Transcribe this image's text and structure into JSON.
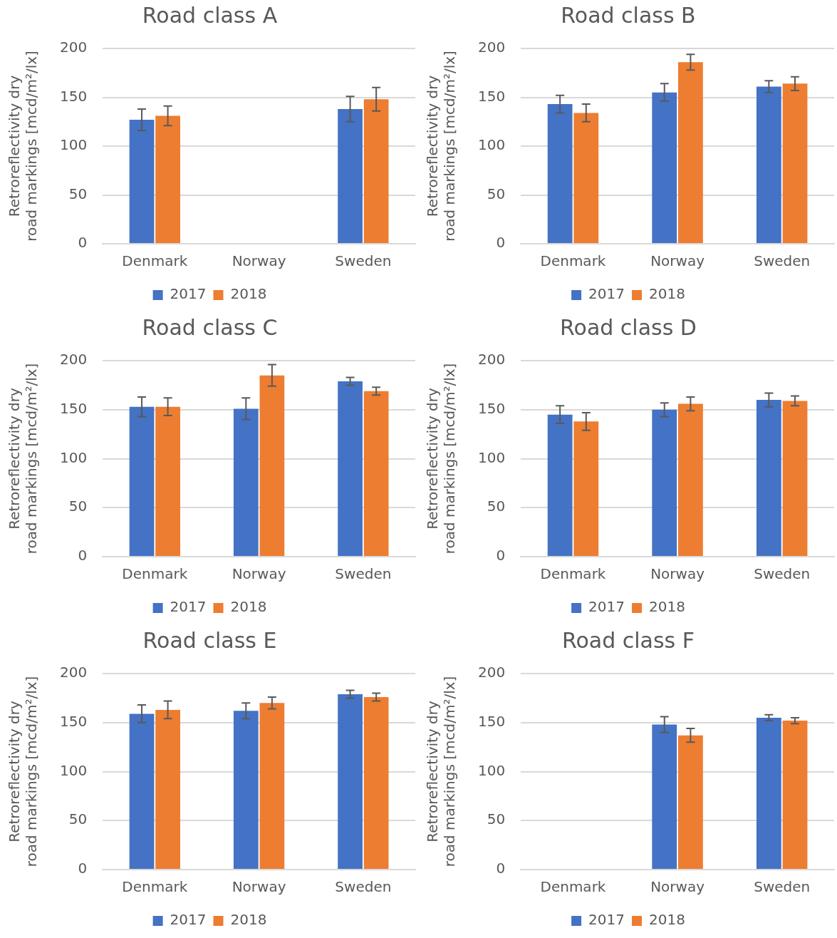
{
  "chart_data": [
    {
      "type": "bar",
      "title": "Road class A",
      "ylabel": "Retroreflectivity dry road markings [mcd/m²/lx]",
      "categories": [
        "Denmark",
        "Norway",
        "Sweden"
      ],
      "ylim": [
        0,
        200
      ],
      "yticks": [
        0,
        50,
        100,
        150,
        200
      ],
      "grid": "y",
      "legend": "bottom",
      "series": [
        {
          "name": "2017",
          "color": "#4472c4",
          "values": [
            127,
            null,
            138
          ],
          "errors": [
            11,
            null,
            13
          ]
        },
        {
          "name": "2018",
          "color": "#ed7d31",
          "values": [
            131,
            null,
            148
          ],
          "errors": [
            10,
            null,
            12
          ]
        }
      ]
    },
    {
      "type": "bar",
      "title": "Road class B",
      "ylabel": "Retroreflectivity dry road markings [mcd/m²/lx]",
      "categories": [
        "Denmark",
        "Norway",
        "Sweden"
      ],
      "ylim": [
        0,
        200
      ],
      "yticks": [
        0,
        50,
        100,
        150,
        200
      ],
      "grid": "y",
      "legend": "bottom",
      "series": [
        {
          "name": "2017",
          "color": "#4472c4",
          "values": [
            143,
            155,
            161
          ],
          "errors": [
            9,
            9,
            6
          ]
        },
        {
          "name": "2018",
          "color": "#ed7d31",
          "values": [
            134,
            186,
            164
          ],
          "errors": [
            9,
            8,
            7
          ]
        }
      ]
    },
    {
      "type": "bar",
      "title": "Road class C",
      "ylabel": "Retroreflectivity dry road markings [mcd/m²/lx]",
      "categories": [
        "Denmark",
        "Norway",
        "Sweden"
      ],
      "ylim": [
        0,
        200
      ],
      "yticks": [
        0,
        50,
        100,
        150,
        200
      ],
      "grid": "y",
      "legend": "bottom",
      "series": [
        {
          "name": "2017",
          "color": "#4472c4",
          "values": [
            153,
            151,
            179
          ],
          "errors": [
            10,
            11,
            4
          ]
        },
        {
          "name": "2018",
          "color": "#ed7d31",
          "values": [
            153,
            185,
            169
          ],
          "errors": [
            9,
            11,
            4
          ]
        }
      ]
    },
    {
      "type": "bar",
      "title": "Road class D",
      "ylabel": "Retroreflectivity dry road markings [mcd/m²/lx]",
      "categories": [
        "Denmark",
        "Norway",
        "Sweden"
      ],
      "ylim": [
        0,
        200
      ],
      "yticks": [
        0,
        50,
        100,
        150,
        200
      ],
      "grid": "y",
      "legend": "bottom",
      "series": [
        {
          "name": "2017",
          "color": "#4472c4",
          "values": [
            145,
            150,
            160
          ],
          "errors": [
            9,
            7,
            7
          ]
        },
        {
          "name": "2018",
          "color": "#ed7d31",
          "values": [
            138,
            156,
            159
          ],
          "errors": [
            9,
            7,
            5
          ]
        }
      ]
    },
    {
      "type": "bar",
      "title": "Road class E",
      "ylabel": "Retroreflectivity dry road markings [mcd/m²/lx]",
      "categories": [
        "Denmark",
        "Norway",
        "Sweden"
      ],
      "ylim": [
        0,
        200
      ],
      "yticks": [
        0,
        50,
        100,
        150,
        200
      ],
      "grid": "y",
      "legend": "bottom",
      "series": [
        {
          "name": "2017",
          "color": "#4472c4",
          "values": [
            159,
            162,
            179
          ],
          "errors": [
            9,
            8,
            4
          ]
        },
        {
          "name": "2018",
          "color": "#ed7d31",
          "values": [
            163,
            170,
            176
          ],
          "errors": [
            9,
            6,
            4
          ]
        }
      ]
    },
    {
      "type": "bar",
      "title": "Road class F",
      "ylabel": "Retroreflectivity dry road markings [mcd/m²/lx]",
      "categories": [
        "Denmark",
        "Norway",
        "Sweden"
      ],
      "ylim": [
        0,
        200
      ],
      "yticks": [
        0,
        50,
        100,
        150,
        200
      ],
      "grid": "y",
      "legend": "bottom",
      "series": [
        {
          "name": "2017",
          "color": "#4472c4",
          "values": [
            null,
            148,
            155
          ],
          "errors": [
            null,
            8,
            3
          ]
        },
        {
          "name": "2018",
          "color": "#ed7d31",
          "values": [
            null,
            137,
            152
          ],
          "errors": [
            null,
            7,
            3
          ]
        }
      ]
    }
  ]
}
